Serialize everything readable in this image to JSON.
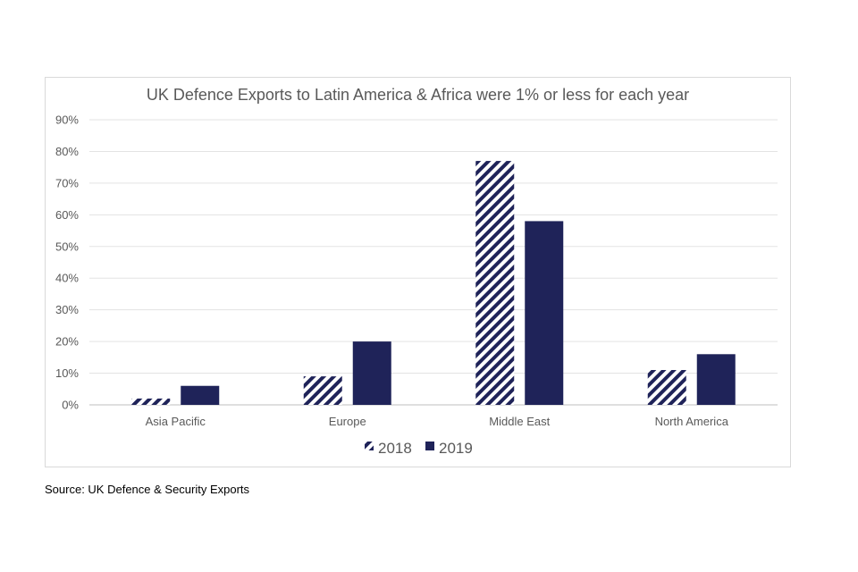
{
  "chart_data": {
    "type": "bar",
    "title": "UK Defence Exports to Latin America & Africa were 1% or less for each year",
    "categories": [
      "Asia Pacific",
      "Europe",
      "Middle East",
      "North America"
    ],
    "series": [
      {
        "name": "2018",
        "values": [
          2,
          9,
          77,
          11
        ],
        "color": "#1f2359",
        "pattern": "diagonal-stripes"
      },
      {
        "name": "2019",
        "values": [
          6,
          20,
          58,
          16
        ],
        "color": "#1f2359",
        "pattern": "solid"
      }
    ],
    "ylim": [
      0,
      90
    ],
    "ytick_step": 10,
    "ytick_suffix": "%",
    "xlabel": "",
    "ylabel": "",
    "legend_position": "bottom",
    "grid": true
  },
  "source": "Source: UK Defence & Security Exports"
}
